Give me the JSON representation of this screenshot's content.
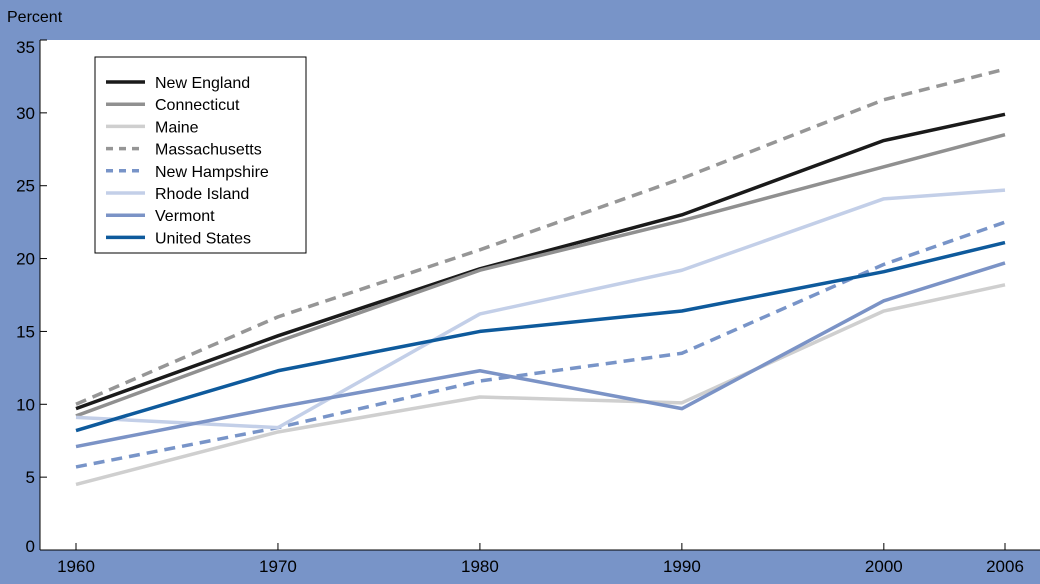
{
  "chart_data": {
    "type": "line",
    "ylabel": "Percent",
    "x": [
      1960,
      1970,
      1980,
      1990,
      2000,
      2006
    ],
    "xlim": [
      1960,
      2006
    ],
    "ylim": [
      0,
      35
    ],
    "yticks": [
      0,
      5,
      10,
      15,
      20,
      25,
      30,
      35
    ],
    "grid": false,
    "legend_position": "top-left",
    "colors": {
      "outer_background": "#7894c8",
      "plot_background": "#ffffff"
    },
    "series": [
      {
        "name": "New England",
        "color": "#1a1a1a",
        "dash": "solid",
        "values": [
          9.7,
          14.7,
          19.3,
          23.0,
          28.1,
          29.9
        ]
      },
      {
        "name": "Connecticut",
        "color": "#909090",
        "dash": "solid",
        "values": [
          9.2,
          14.3,
          19.2,
          22.6,
          26.3,
          28.5
        ]
      },
      {
        "name": "Maine",
        "color": "#cfcfcf",
        "dash": "solid",
        "values": [
          4.5,
          8.1,
          10.5,
          10.1,
          16.4,
          18.2
        ]
      },
      {
        "name": "Massachusetts",
        "color": "#969696",
        "dash": "dashed",
        "values": [
          10.0,
          16.0,
          20.6,
          25.5,
          30.9,
          33.0
        ]
      },
      {
        "name": "New Hampshire",
        "color": "#7894c8",
        "dash": "dashed",
        "values": [
          5.7,
          8.4,
          11.6,
          13.5,
          19.6,
          22.5
        ]
      },
      {
        "name": "Rhode Island",
        "color": "#c3cfe8",
        "dash": "solid",
        "values": [
          9.1,
          8.4,
          16.2,
          19.2,
          24.1,
          24.7
        ]
      },
      {
        "name": "Vermont",
        "color": "#7b93c6",
        "dash": "solid",
        "values": [
          7.1,
          9.8,
          12.3,
          9.7,
          17.1,
          19.7
        ]
      },
      {
        "name": "United States",
        "color": "#0e5a9c",
        "dash": "solid",
        "values": [
          8.2,
          12.3,
          15.0,
          16.4,
          19.1,
          21.1
        ]
      }
    ]
  }
}
